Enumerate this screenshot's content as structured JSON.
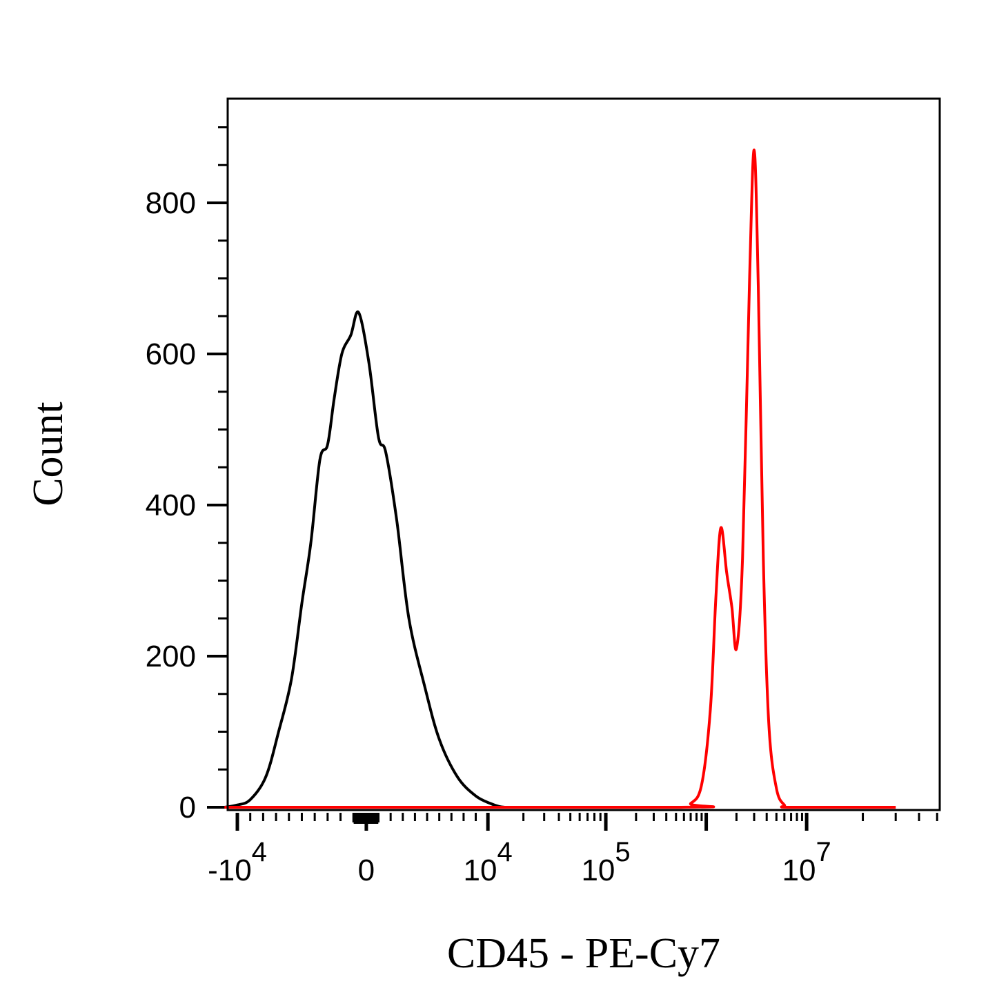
{
  "chart_data": {
    "type": "line",
    "title": "",
    "xlabel": "CD45 - PE-Cy7",
    "ylabel": "Count",
    "x_scale": "biexponential",
    "ylim": [
      0,
      940
    ],
    "grid": false,
    "legend": "none",
    "x_ticks": [
      {
        "value": -10000,
        "base": "-10",
        "exp": "4"
      },
      {
        "value": 0,
        "base": "0",
        "exp": ""
      },
      {
        "value": 10000,
        "base": "10",
        "exp": "4"
      },
      {
        "value": 100000,
        "base": "10",
        "exp": "5"
      },
      {
        "value": 10000000,
        "base": "10",
        "exp": "7"
      }
    ],
    "y_ticks": [
      {
        "value": 0,
        "label": "0"
      },
      {
        "value": 200,
        "label": "200"
      },
      {
        "value": 400,
        "label": "400"
      },
      {
        "value": 600,
        "label": "600"
      },
      {
        "value": 800,
        "label": "800"
      }
    ],
    "series": [
      {
        "color": "#000000",
        "points": [
          [
            -11000,
            0
          ],
          [
            -10000,
            3
          ],
          [
            -9000,
            10
          ],
          [
            -7800,
            40
          ],
          [
            -6800,
            100
          ],
          [
            -5800,
            170
          ],
          [
            -5000,
            270
          ],
          [
            -4300,
            350
          ],
          [
            -3600,
            460
          ],
          [
            -3000,
            480
          ],
          [
            -2500,
            540
          ],
          [
            -1900,
            600
          ],
          [
            -1200,
            625
          ],
          [
            -600,
            655
          ],
          [
            200,
            590
          ],
          [
            1000,
            490
          ],
          [
            1600,
            470
          ],
          [
            2500,
            380
          ],
          [
            3500,
            250
          ],
          [
            4800,
            160
          ],
          [
            6000,
            90
          ],
          [
            7500,
            40
          ],
          [
            9000,
            15
          ],
          [
            10500,
            5
          ],
          [
            12500,
            1
          ],
          [
            14000,
            0
          ]
        ]
      },
      {
        "color": "#ff0000",
        "points": [
          [
            -11000,
            0
          ],
          [
            500000,
            0
          ],
          [
            700000,
            5
          ],
          [
            900000,
            30
          ],
          [
            1100000,
            130
          ],
          [
            1250000,
            280
          ],
          [
            1400000,
            370
          ],
          [
            1600000,
            310
          ],
          [
            1800000,
            265
          ],
          [
            2000000,
            210
          ],
          [
            2300000,
            330
          ],
          [
            2700000,
            700
          ],
          [
            3000000,
            870
          ],
          [
            3300000,
            690
          ],
          [
            3700000,
            330
          ],
          [
            4200000,
            110
          ],
          [
            5000000,
            25
          ],
          [
            6000000,
            3
          ],
          [
            7000000,
            0
          ],
          [
            30000000,
            0
          ]
        ]
      }
    ]
  }
}
